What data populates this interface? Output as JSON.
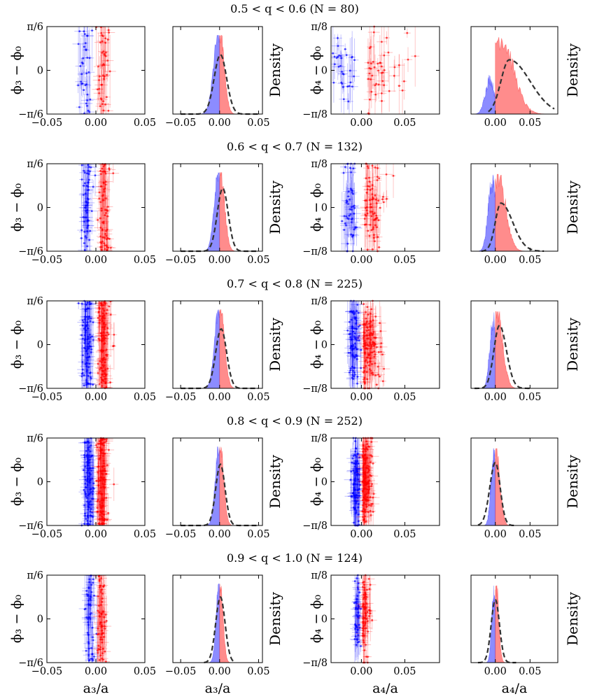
{
  "chart_data": {
    "type": "scatter",
    "colors": {
      "negative": "#0000ff",
      "positive": "#ff0000",
      "fit": "#333333"
    },
    "xlabels": {
      "a3": "a₃/a",
      "a4": "a₄/a"
    },
    "ylabels": {
      "phi3": "ϕ₃ − ϕ₀",
      "phi4": "ϕ₄ − ϕ₀",
      "density": "Density"
    },
    "phi3_ticks": [
      "π/6",
      "0",
      "−π/6"
    ],
    "phi4_ticks": [
      "π/8",
      "0",
      "−π/8"
    ],
    "a3_scatter_xlim": [
      -0.05,
      0.05
    ],
    "a3_scatter_xticks": [
      "−0.05",
      "0.00",
      "0.05"
    ],
    "a3_hist_xlim": [
      -0.06,
      0.055
    ],
    "a3_hist_xticks": [
      "−0.05",
      "0.00",
      "0.05"
    ],
    "a4_xlim": [
      -0.035,
      0.09
    ],
    "a4_xticks": [
      "0.00",
      "0.05"
    ],
    "rows": [
      {
        "title": "0.5 < q < 0.6 (N = 80)",
        "N": 80,
        "a3": {
          "neg_center": -0.008,
          "neg_spread": 0.007,
          "pos_center": 0.004,
          "pos_spread": 0.006,
          "fit_mu": 0.001,
          "fit_sigma": 0.008,
          "fit_peak": 0.68,
          "fit_range": [
            -0.05,
            0.05
          ]
        },
        "a4": {
          "neg_center": -0.02,
          "neg_spread": 0.008,
          "pos_center": 0.025,
          "pos_spread": 0.02,
          "fit_mu": 0.02,
          "fit_sigma_left": 0.012,
          "fit_sigma_right": 0.03,
          "fit_peak": 0.62,
          "fit_range": [
            -0.01,
            0.085
          ]
        }
      },
      {
        "title": "0.6 < q < 0.7 (N = 132)",
        "N": 132,
        "a3": {
          "neg_center": -0.007,
          "neg_spread": 0.006,
          "pos_center": 0.005,
          "pos_spread": 0.006,
          "fit_mu": 0.004,
          "fit_sigma": 0.007,
          "fit_peak": 0.72,
          "fit_range": [
            -0.05,
            0.05
          ]
        },
        "a4": {
          "neg_center": -0.012,
          "neg_spread": 0.007,
          "pos_center": 0.012,
          "pos_spread": 0.012,
          "fit_mu": 0.008,
          "fit_sigma_left": 0.008,
          "fit_sigma_right": 0.017,
          "fit_peak": 0.55,
          "fit_range": [
            -0.02,
            0.07
          ]
        }
      },
      {
        "title": "0.7 < q < 0.8 (N = 225)",
        "N": 225,
        "a3": {
          "neg_center": -0.006,
          "neg_spread": 0.006,
          "pos_center": 0.005,
          "pos_spread": 0.006,
          "fit_mu": 0.002,
          "fit_sigma": 0.007,
          "fit_peak": 0.68,
          "fit_range": [
            -0.05,
            0.05
          ]
        },
        "a4": {
          "neg_center": -0.008,
          "neg_spread": 0.006,
          "pos_center": 0.008,
          "pos_spread": 0.009,
          "fit_mu": 0.006,
          "fit_sigma_left": 0.008,
          "fit_sigma_right": 0.01,
          "fit_peak": 0.72,
          "fit_range": [
            -0.03,
            0.05
          ]
        }
      },
      {
        "title": "0.8 < q < 0.9 (N = 252)",
        "N": 252,
        "a3": {
          "neg_center": -0.005,
          "neg_spread": 0.005,
          "pos_center": 0.004,
          "pos_spread": 0.005,
          "fit_mu": 0.001,
          "fit_sigma": 0.006,
          "fit_peak": 0.7,
          "fit_range": [
            -0.05,
            0.05
          ]
        },
        "a4": {
          "neg_center": -0.006,
          "neg_spread": 0.005,
          "pos_center": 0.004,
          "pos_spread": 0.006,
          "fit_mu": 0.0,
          "fit_sigma_left": 0.008,
          "fit_sigma_right": 0.007,
          "fit_peak": 0.72,
          "fit_range": [
            -0.025,
            0.03
          ]
        }
      },
      {
        "title": "0.9 < q < 1.0 (N = 124)",
        "N": 124,
        "a3": {
          "neg_center": -0.004,
          "neg_spread": 0.004,
          "pos_center": 0.004,
          "pos_spread": 0.004,
          "fit_mu": 0.001,
          "fit_sigma": 0.006,
          "fit_peak": 0.75,
          "fit_range": [
            -0.02,
            0.02
          ]
        },
        "a4": {
          "neg_center": -0.005,
          "neg_spread": 0.004,
          "pos_center": 0.004,
          "pos_spread": 0.004,
          "fit_mu": 0.0,
          "fit_sigma_left": 0.006,
          "fit_sigma_right": 0.006,
          "fit_peak": 0.72,
          "fit_range": [
            -0.025,
            0.03
          ]
        }
      }
    ]
  }
}
